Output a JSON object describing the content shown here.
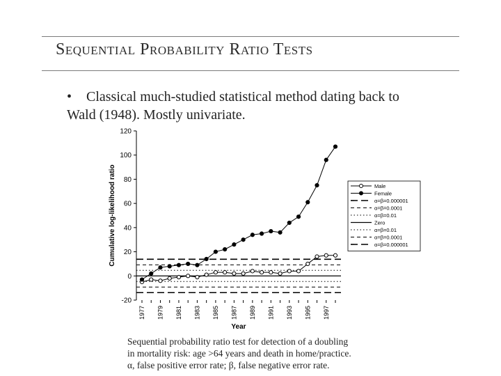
{
  "slide": {
    "title": "Sequential Probability Ratio Tests",
    "bullet_marker": "•",
    "bullet_line1": "Classical much-studied statistical method dating back to",
    "bullet_line2": "Wald (1948). Mostly univariate.",
    "caption_lines": [
      "Sequential probability ratio test for detection of a doubling",
      "in mortality risk: age >64 years and death in home/practice.",
      "α, false positive error rate; β, false negative error rate."
    ]
  },
  "chart_data": {
    "type": "line",
    "xlabel": "Year",
    "ylabel": "Cumulative log-likelihood ratio",
    "ylim": [
      -20,
      120
    ],
    "yticks": [
      -20,
      0,
      20,
      40,
      60,
      80,
      100,
      120
    ],
    "xlim": [
      1977,
      1998
    ],
    "xtick_labels": [
      "1977",
      "1979",
      "1981",
      "1983",
      "1985",
      "1987",
      "1989",
      "1991",
      "1993",
      "1995",
      "1997"
    ],
    "grid": false,
    "legend_position": "right",
    "series": [
      {
        "name": "Male",
        "marker": "open-circle",
        "x": [
          1977,
          1978,
          1979,
          1980,
          1981,
          1982,
          1983,
          1984,
          1985,
          1986,
          1987,
          1988,
          1989,
          1990,
          1991,
          1992,
          1993,
          1994,
          1995,
          1996,
          1997,
          1998
        ],
        "values": [
          -5,
          -3,
          -4,
          -2,
          -1,
          0,
          -1,
          1,
          3,
          3,
          2,
          2,
          4,
          3,
          3,
          2,
          4,
          4,
          10,
          16,
          17,
          17
        ]
      },
      {
        "name": "Female",
        "marker": "filled-circle",
        "x": [
          1977,
          1978,
          1979,
          1980,
          1981,
          1982,
          1983,
          1984,
          1985,
          1986,
          1987,
          1988,
          1989,
          1990,
          1991,
          1992,
          1993,
          1994,
          1995,
          1996,
          1997,
          1998
        ],
        "values": [
          -3,
          2,
          7,
          8,
          9,
          10,
          9,
          14,
          20,
          22,
          26,
          30,
          34,
          35,
          37,
          36,
          44,
          49,
          61,
          75,
          96,
          107
        ]
      }
    ],
    "reference_lines": [
      {
        "name": "α=β=0.000001",
        "value": 13.8,
        "style": "long-dash",
        "width": 1.6
      },
      {
        "name": "α=β=0.0001",
        "value": 9.2,
        "style": "short-dash",
        "width": 1
      },
      {
        "name": "α=β=0.01",
        "value": 4.6,
        "style": "dot",
        "width": 1
      },
      {
        "name": "Zero",
        "value": 0,
        "style": "solid",
        "width": 1.2
      },
      {
        "name": "α=β=0.01",
        "value": -4.6,
        "style": "dot",
        "width": 1
      },
      {
        "name": "α=β=0.0001",
        "value": -9.2,
        "style": "short-dash",
        "width": 1
      },
      {
        "name": "α=β=0.000001",
        "value": -13.8,
        "style": "long-dash",
        "width": 1.6
      }
    ]
  }
}
